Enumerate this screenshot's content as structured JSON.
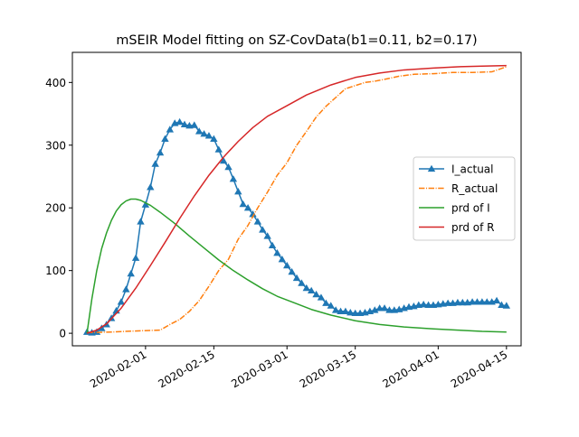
{
  "chart_data": {
    "type": "line",
    "title": "mSEIR Model fitting on SZ-CovData(b1=0.11, b2=0.17)",
    "xlabel": "",
    "ylabel": "",
    "x_axis_type": "date",
    "x_ticks": [
      "2020-02-01",
      "2020-02-15",
      "2020-03-01",
      "2020-03-15",
      "2020-04-01",
      "2020-04-15"
    ],
    "xlim": [
      "2020-01-17",
      "2020-04-18"
    ],
    "y_ticks": [
      0,
      100,
      200,
      300,
      400
    ],
    "ylim": [
      -20,
      448
    ],
    "grid": false,
    "legend_position": "center-right",
    "series": [
      {
        "name": "I_actual",
        "style": "solid",
        "marker": "triangle",
        "color": "#1f77b4",
        "x": [
          "2020-01-20",
          "2020-01-21",
          "2020-01-22",
          "2020-01-23",
          "2020-01-24",
          "2020-01-25",
          "2020-01-26",
          "2020-01-27",
          "2020-01-28",
          "2020-01-29",
          "2020-01-30",
          "2020-01-31",
          "2020-02-01",
          "2020-02-02",
          "2020-02-03",
          "2020-02-04",
          "2020-02-05",
          "2020-02-06",
          "2020-02-07",
          "2020-02-08",
          "2020-02-09",
          "2020-02-10",
          "2020-02-11",
          "2020-02-12",
          "2020-02-13",
          "2020-02-14",
          "2020-02-15",
          "2020-02-16",
          "2020-02-17",
          "2020-02-18",
          "2020-02-19",
          "2020-02-20",
          "2020-02-21",
          "2020-02-22",
          "2020-02-23",
          "2020-02-24",
          "2020-02-25",
          "2020-02-26",
          "2020-02-27",
          "2020-02-28",
          "2020-02-29",
          "2020-03-01",
          "2020-03-02",
          "2020-03-03",
          "2020-03-04",
          "2020-03-05",
          "2020-03-06",
          "2020-03-07",
          "2020-03-08",
          "2020-03-09",
          "2020-03-10",
          "2020-03-11",
          "2020-03-12",
          "2020-03-13",
          "2020-03-14",
          "2020-03-15",
          "2020-03-16",
          "2020-03-17",
          "2020-03-18",
          "2020-03-19",
          "2020-03-20",
          "2020-03-21",
          "2020-03-22",
          "2020-03-23",
          "2020-03-24",
          "2020-03-25",
          "2020-03-26",
          "2020-03-27",
          "2020-03-28",
          "2020-03-29",
          "2020-03-30",
          "2020-03-31",
          "2020-04-01",
          "2020-04-02",
          "2020-04-03",
          "2020-04-04",
          "2020-04-05",
          "2020-04-06",
          "2020-04-07",
          "2020-04-08",
          "2020-04-09",
          "2020-04-10",
          "2020-04-11",
          "2020-04-12",
          "2020-04-13",
          "2020-04-14",
          "2020-04-15"
        ],
        "values": [
          2,
          1,
          2,
          8,
          14,
          24,
          36,
          50,
          70,
          95,
          120,
          178,
          205,
          233,
          270,
          288,
          310,
          325,
          335,
          337,
          333,
          331,
          332,
          322,
          318,
          315,
          310,
          293,
          275,
          265,
          246,
          226,
          206,
          200,
          190,
          178,
          165,
          155,
          140,
          128,
          118,
          108,
          98,
          88,
          80,
          72,
          68,
          62,
          57,
          48,
          44,
          37,
          35,
          35,
          33,
          32,
          32,
          33,
          35,
          37,
          40,
          40,
          37,
          37,
          38,
          40,
          42,
          43,
          45,
          46,
          45,
          45,
          46,
          47,
          48,
          48,
          49,
          49,
          49,
          50,
          50,
          50,
          50,
          50,
          52,
          45,
          44
        ]
      },
      {
        "name": "R_actual",
        "style": "dashdot",
        "marker": "none",
        "color": "#ff7f0e",
        "x": [
          "2020-01-20",
          "2020-01-25",
          "2020-01-31",
          "2020-02-04",
          "2020-02-06",
          "2020-02-08",
          "2020-02-10",
          "2020-02-12",
          "2020-02-14",
          "2020-02-16",
          "2020-02-18",
          "2020-02-20",
          "2020-02-22",
          "2020-02-24",
          "2020-02-26",
          "2020-02-28",
          "2020-03-01",
          "2020-03-03",
          "2020-03-05",
          "2020-03-07",
          "2020-03-09",
          "2020-03-11",
          "2020-03-13",
          "2020-03-15",
          "2020-03-17",
          "2020-03-19",
          "2020-03-21",
          "2020-03-24",
          "2020-03-27",
          "2020-03-31",
          "2020-04-04",
          "2020-04-08",
          "2020-04-12",
          "2020-04-15"
        ],
        "values": [
          1,
          2,
          4,
          5,
          14,
          22,
          35,
          52,
          75,
          100,
          118,
          150,
          172,
          200,
          225,
          252,
          272,
          300,
          322,
          345,
          362,
          376,
          390,
          395,
          400,
          402,
          405,
          410,
          413,
          414,
          416,
          416,
          417,
          425
        ]
      },
      {
        "name": "prd of I",
        "style": "solid",
        "marker": "none",
        "color": "#2ca02c",
        "x": [
          "2020-01-20",
          "2020-01-21",
          "2020-01-22",
          "2020-01-23",
          "2020-01-24",
          "2020-01-25",
          "2020-01-26",
          "2020-01-27",
          "2020-01-28",
          "2020-01-29",
          "2020-01-30",
          "2020-01-31",
          "2020-02-02",
          "2020-02-04",
          "2020-02-07",
          "2020-02-10",
          "2020-02-13",
          "2020-02-16",
          "2020-02-19",
          "2020-02-22",
          "2020-02-25",
          "2020-02-28",
          "2020-03-03",
          "2020-03-06",
          "2020-03-10",
          "2020-03-15",
          "2020-03-20",
          "2020-03-25",
          "2020-03-31",
          "2020-04-05",
          "2020-04-10",
          "2020-04-15"
        ],
        "values": [
          0,
          55,
          100,
          135,
          160,
          180,
          195,
          205,
          211,
          214,
          214,
          212,
          204,
          193,
          175,
          155,
          136,
          117,
          100,
          85,
          71,
          59,
          47,
          38,
          29,
          20,
          14,
          10,
          7,
          5,
          3,
          2
        ]
      },
      {
        "name": "prd of R",
        "style": "solid",
        "marker": "none",
        "color": "#d62728",
        "x": [
          "2020-01-20",
          "2020-01-22",
          "2020-01-24",
          "2020-01-27",
          "2020-01-30",
          "2020-02-02",
          "2020-02-05",
          "2020-02-08",
          "2020-02-11",
          "2020-02-14",
          "2020-02-17",
          "2020-02-20",
          "2020-02-23",
          "2020-02-26",
          "2020-03-01",
          "2020-03-05",
          "2020-03-10",
          "2020-03-15",
          "2020-03-20",
          "2020-03-25",
          "2020-03-31",
          "2020-04-05",
          "2020-04-10",
          "2020-04-15"
        ],
        "values": [
          0,
          5,
          15,
          40,
          72,
          108,
          145,
          183,
          219,
          252,
          281,
          306,
          328,
          346,
          363,
          380,
          396,
          408,
          415,
          420,
          423,
          425,
          426,
          427
        ]
      }
    ]
  }
}
